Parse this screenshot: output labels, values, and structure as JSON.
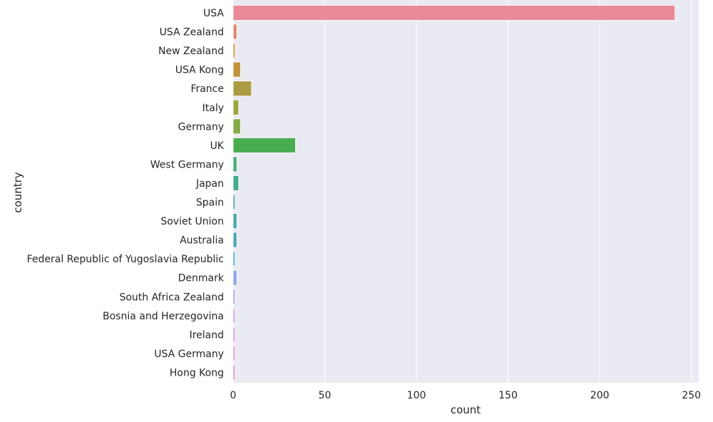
{
  "chart_data": {
    "type": "bar",
    "orientation": "horizontal",
    "title": "",
    "xlabel": "count",
    "ylabel": "country",
    "xlim": [
      0,
      254
    ],
    "xticks": [
      0,
      50,
      100,
      150,
      200,
      250
    ],
    "grid": true,
    "legend": "none",
    "style": {
      "plot_background": "#eaeaf2",
      "gridline_color": "#ffffff",
      "text_color": "#262626"
    },
    "categories": [
      "USA",
      "USA Zealand",
      "New Zealand",
      "USA Kong",
      "France",
      "Italy",
      "Germany",
      "UK",
      "West Germany",
      "Japan",
      "Spain",
      "Soviet Union",
      "Australia",
      "Federal Republic of Yugoslavia Republic",
      "Denmark",
      "South Africa Zealand",
      "Bosnia and Herzegovina",
      "Ireland",
      "USA Germany",
      "Hong Kong"
    ],
    "values": [
      241,
      2,
      1,
      4,
      10,
      3,
      4,
      34,
      2,
      3,
      1,
      2,
      2,
      1,
      2,
      1,
      1,
      1,
      1,
      1
    ],
    "colors": [
      "#e9899a",
      "#e7876f",
      "#db8d45",
      "#c3913c",
      "#ad9b43",
      "#9ca440",
      "#83ab47",
      "#48ad4e",
      "#45ac7a",
      "#45aa8f",
      "#44a89f",
      "#43a8ac",
      "#45abbb",
      "#4bb0d4",
      "#8ca8e5",
      "#a99ee8",
      "#c798e6",
      "#d990df",
      "#e18dce",
      "#e58ab8"
    ]
  }
}
